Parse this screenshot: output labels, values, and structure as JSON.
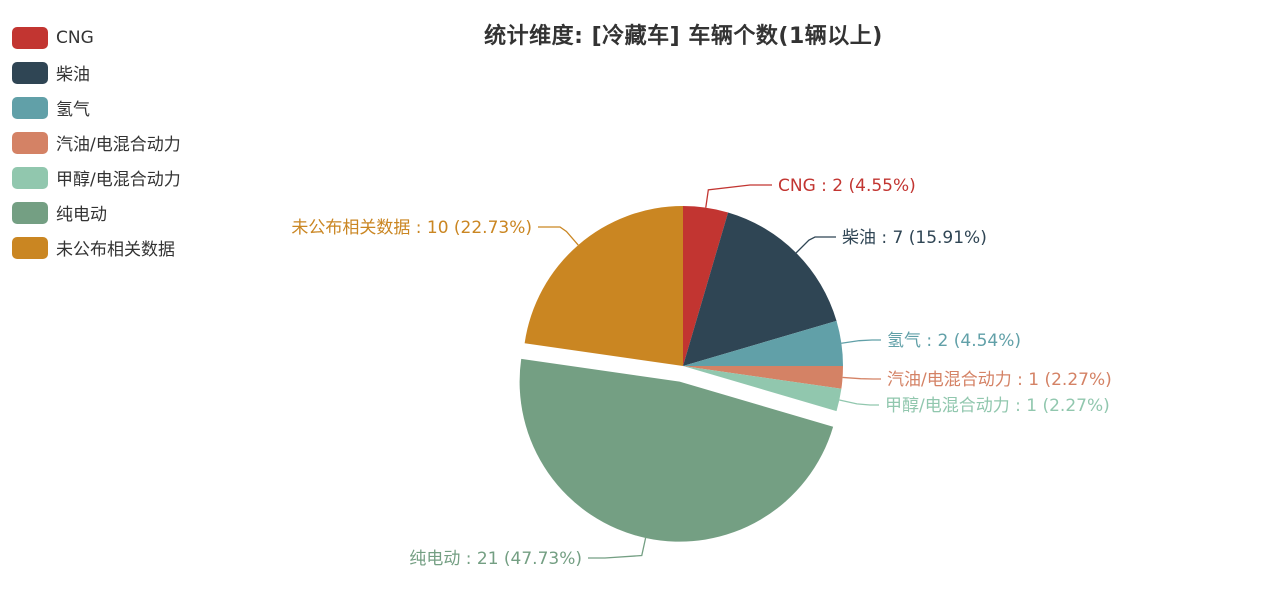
{
  "title": "统计维度: [冷藏车] 车辆个数(1辆以上)",
  "chart_data": {
    "type": "pie",
    "title": "统计维度: [冷藏车] 车辆个数(1辆以上)",
    "series": [
      {
        "name": "CNG",
        "value": 2,
        "percent": "4.55%",
        "color": "#c23531",
        "label": "CNG : 2 (4.55%)"
      },
      {
        "name": "柴油",
        "value": 7,
        "percent": "15.91%",
        "color": "#2f4554",
        "label": "柴油 : 7 (15.91%)"
      },
      {
        "name": "氢气",
        "value": 2,
        "percent": "4.54%",
        "color": "#61a0a8",
        "label": "氢气 : 2 (4.54%)"
      },
      {
        "name": "汽油/电混合动力",
        "value": 1,
        "percent": "2.27%",
        "color": "#d48265",
        "label": "汽油/电混合动力 : 1 (2.27%)"
      },
      {
        "name": "甲醇/电混合动力",
        "value": 1,
        "percent": "2.27%",
        "color": "#91c7ae",
        "label": "甲醇/电混合动力 : 1 (2.27%)"
      },
      {
        "name": "纯电动",
        "value": 21,
        "percent": "47.73%",
        "color": "#749f83",
        "label": "纯电动 : 21 (47.73%)"
      },
      {
        "name": "未公布相关数据",
        "value": 10,
        "percent": "22.73%",
        "color": "#ca8622",
        "label": "未公布相关数据 : 10 (22.73%)"
      }
    ],
    "legend_position": "top-left",
    "highlighted": "纯电动"
  }
}
